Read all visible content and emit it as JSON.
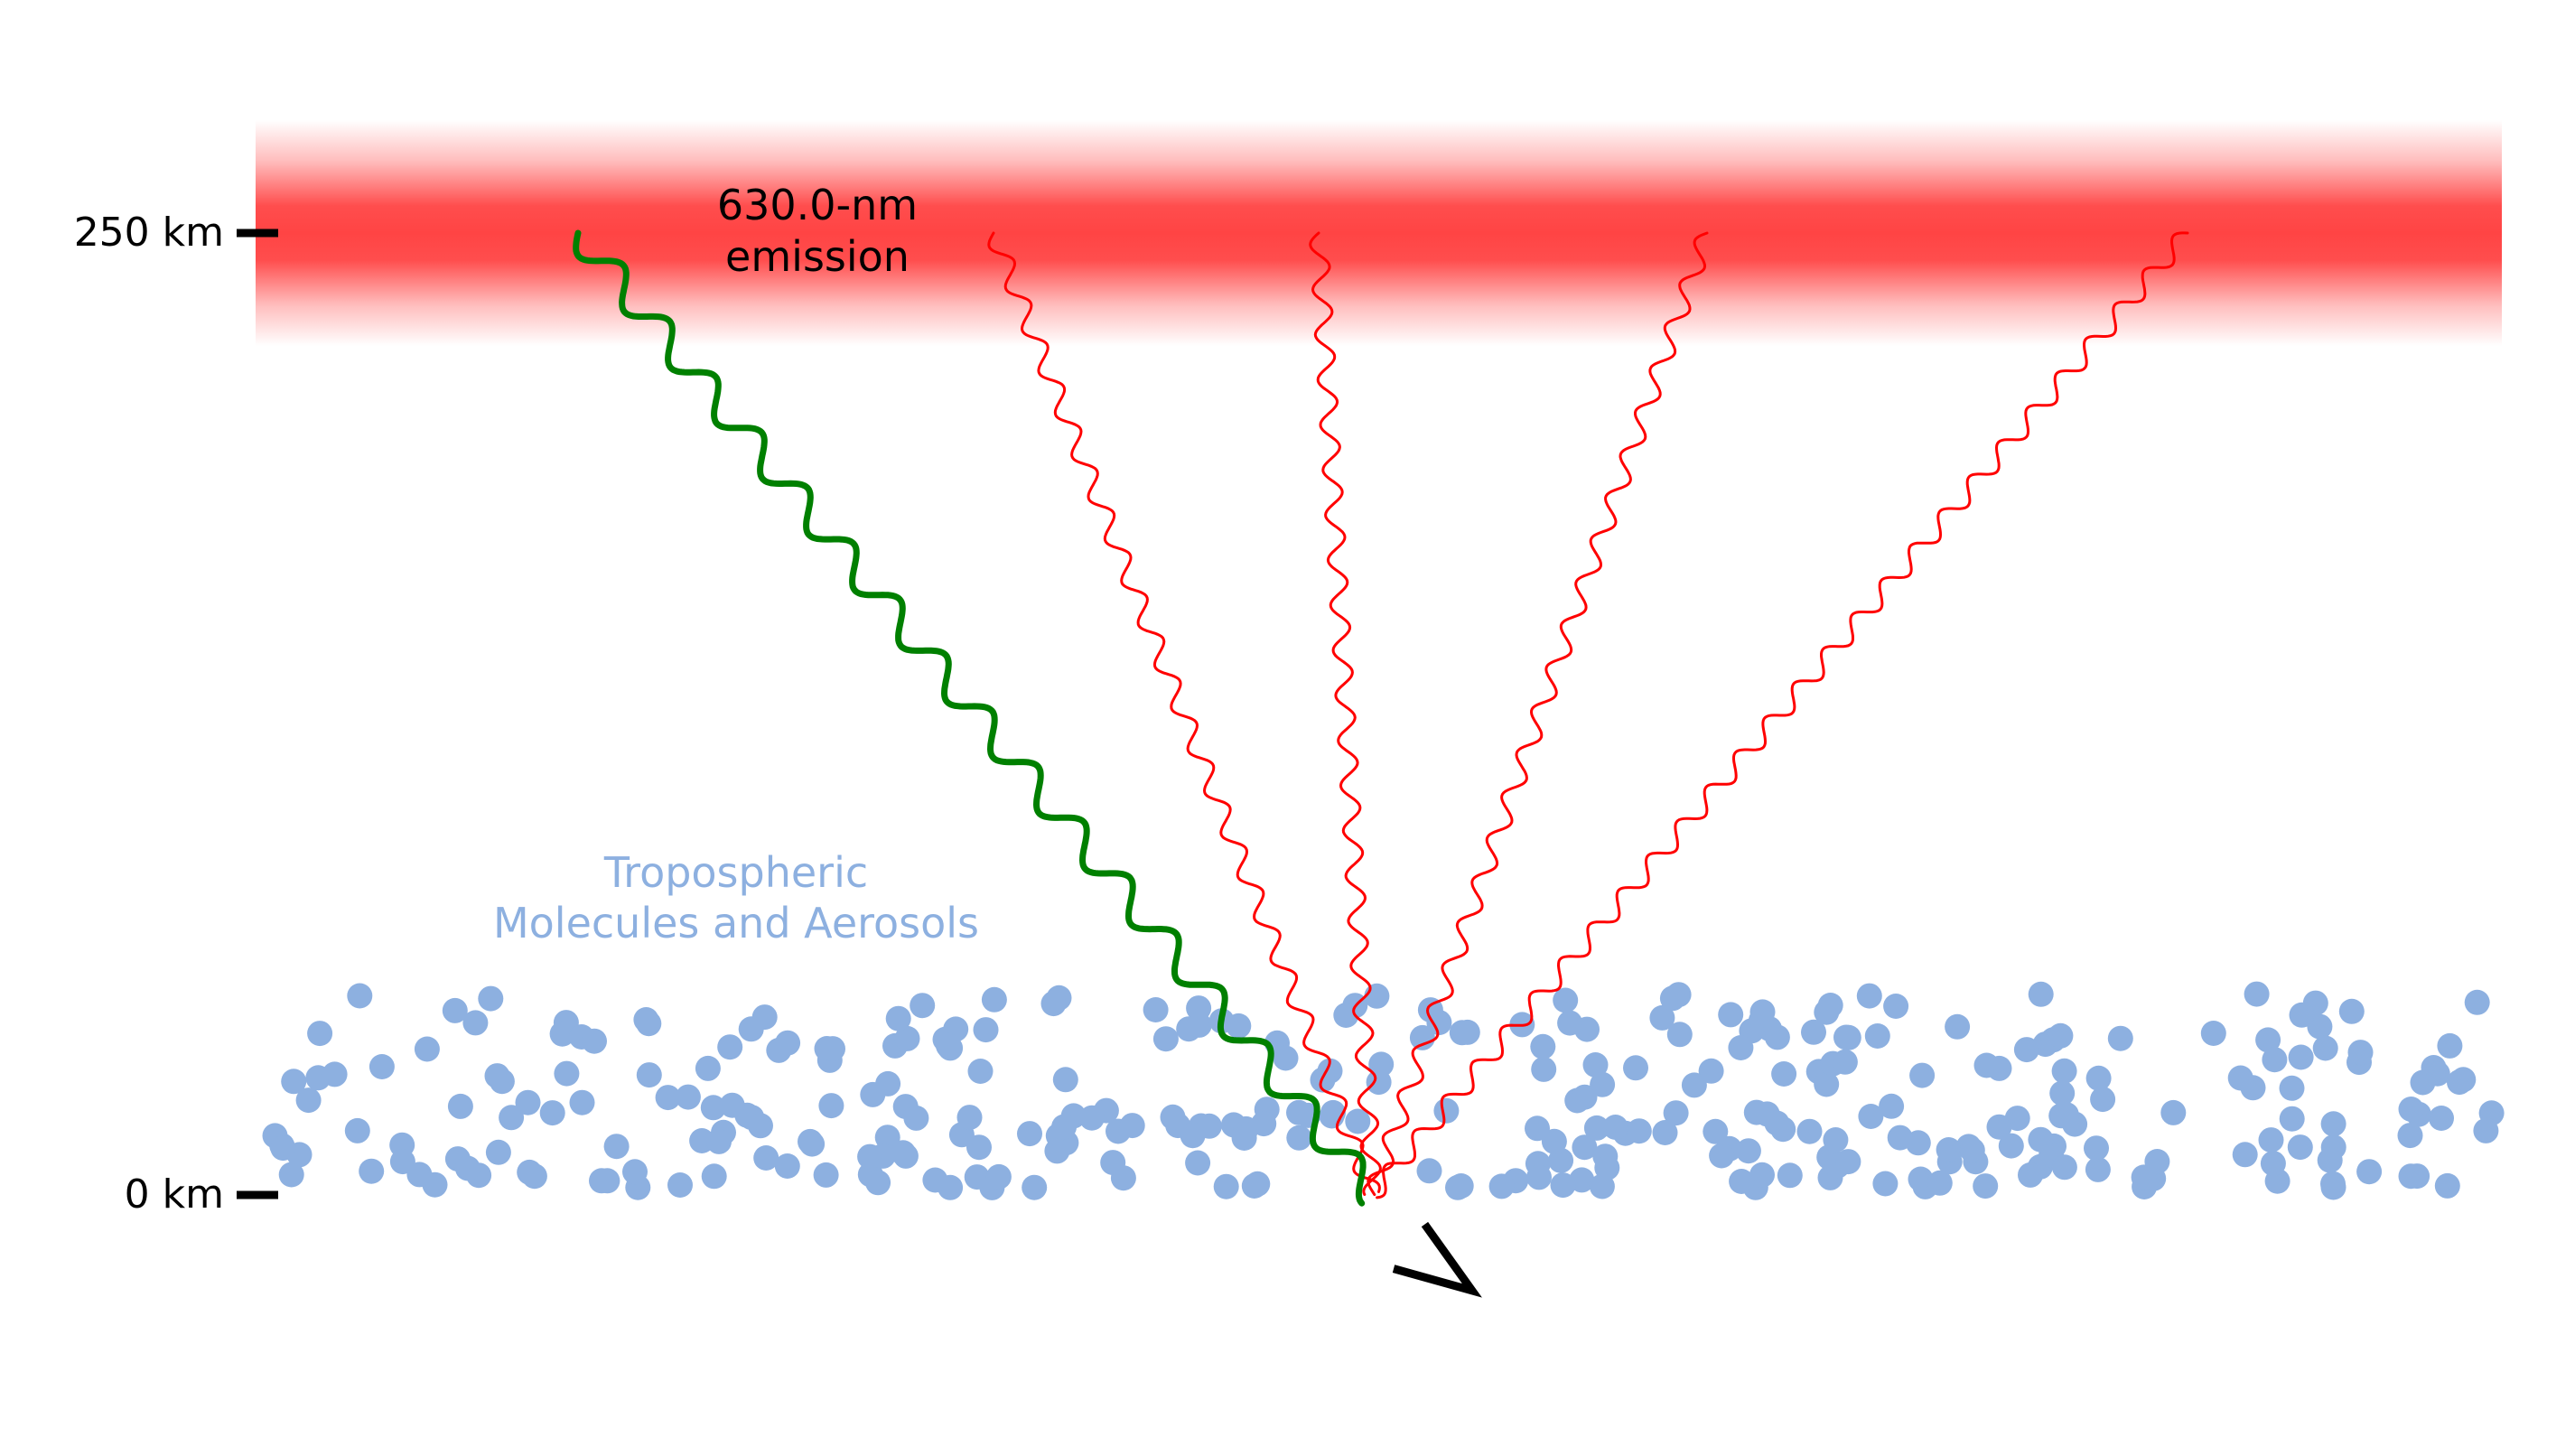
{
  "axis": {
    "top_label": "250 km",
    "bottom_label": "0 km"
  },
  "emission": {
    "label_line1": "630.0-nm",
    "label_line2": "emission",
    "color": "#ff4444"
  },
  "troposphere": {
    "label_line1": "Tropospheric",
    "label_line2": "Molecules and Aerosols",
    "color": "#8db0e0"
  },
  "rays": {
    "red_color": "#ff0000",
    "green_color": "#008000"
  },
  "observer": {
    "icon": "eye-icon"
  }
}
